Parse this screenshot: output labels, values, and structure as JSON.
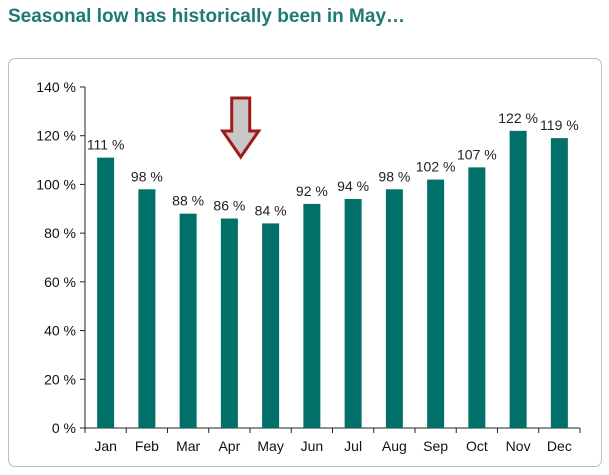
{
  "title": "Seasonal low has historically been in May…",
  "colors": {
    "bar": "#007068",
    "title": "#1e7a72",
    "arrow_fill": "#c8c8c8",
    "arrow_stroke": "#9e1b1b"
  },
  "annotation": {
    "type": "down-arrow",
    "points_to": "Apr"
  },
  "chart_data": {
    "type": "bar",
    "title": "",
    "xlabel": "",
    "ylabel": "",
    "categories": [
      "Jan",
      "Feb",
      "Mar",
      "Apr",
      "May",
      "Jun",
      "Jul",
      "Aug",
      "Sep",
      "Oct",
      "Nov",
      "Dec"
    ],
    "values": [
      111,
      98,
      88,
      86,
      84,
      92,
      94,
      98,
      102,
      107,
      122,
      119
    ],
    "value_labels": [
      "111 %",
      "98 %",
      "88 %",
      "86 %",
      "84 %",
      "92 %",
      "94 %",
      "98 %",
      "102 %",
      "107 %",
      "122 %",
      "119 %"
    ],
    "ylim": [
      0,
      140
    ],
    "yticks": [
      0,
      20,
      40,
      60,
      80,
      100,
      120,
      140
    ],
    "ytick_labels": [
      "0 %",
      "20 %",
      "40 %",
      "60 %",
      "80 %",
      "100 %",
      "120 %",
      "140 %"
    ],
    "grid": false,
    "legend": "none"
  }
}
